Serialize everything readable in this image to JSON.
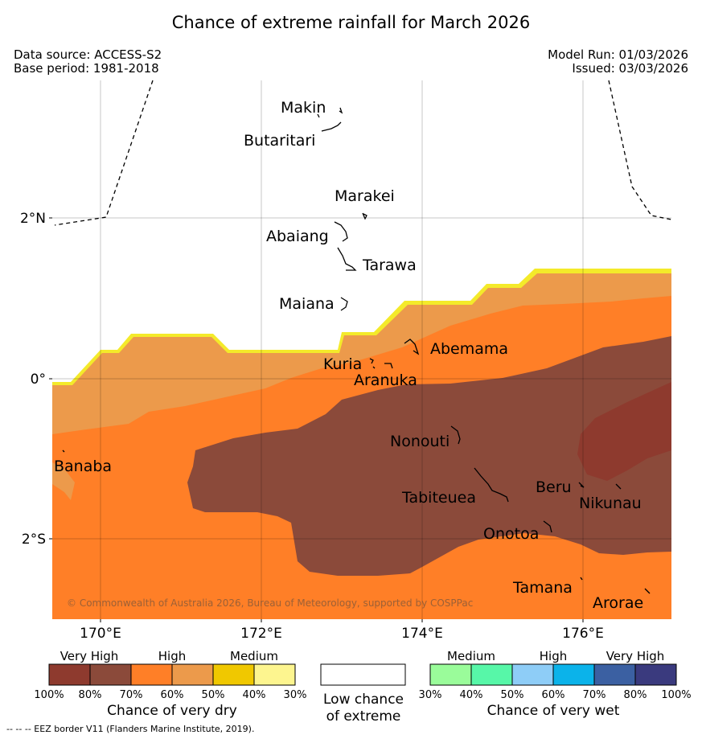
{
  "title": "Chance of extreme rainfall for March 2026",
  "meta": {
    "data_source": "Data source: ACCESS-S2",
    "base_period": "Base period: 1981-2018",
    "model_run": "Model Run: 01/03/2026",
    "issued": "Issued: 03/03/2026"
  },
  "axes": {
    "lat_labels": [
      "2°N",
      "0°",
      "2°S"
    ],
    "lon_labels": [
      "170°E",
      "172°E",
      "174°E",
      "176°E"
    ]
  },
  "places": {
    "makin": "Makin",
    "butaritari": "Butaritari",
    "marakei": "Marakei",
    "abaiang": "Abaiang",
    "tarawa": "Tarawa",
    "maiana": "Maiana",
    "abemama": "Abemama",
    "kuria": "Kuria",
    "aranuka": "Aranuka",
    "nonouti": "Nonouti",
    "banaba": "Banaba",
    "tabiteuea": "Tabiteuea",
    "beru": "Beru",
    "nikunau": "Nikunau",
    "onotoa": "Onotoa",
    "tamana": "Tamana",
    "arorae": "Arorae"
  },
  "copyright": "© Commonwealth of Australia 2026, Bureau of Meteorology, supported by COSPPac",
  "legend": {
    "dry": {
      "headers": [
        "Very High",
        "High",
        "Medium"
      ],
      "colors": [
        "#8e3a2e",
        "#8b4a3a",
        "#ff7f27",
        "#ec9a4b",
        "#f0c800",
        "#fdf58f"
      ],
      "ticks": [
        "100%",
        "80%",
        "70%",
        "60%",
        "50%",
        "40%",
        "30%"
      ],
      "title": "Chance of very dry"
    },
    "low": {
      "line1": "Low chance",
      "line2": "of extreme"
    },
    "wet": {
      "headers": [
        "Medium",
        "High",
        "Very High"
      ],
      "colors": [
        "#9afc9a",
        "#57f7a8",
        "#8ecdf7",
        "#0bb3ea",
        "#3b60a2",
        "#3a3a7e"
      ],
      "ticks": [
        "30%",
        "40%",
        "50%",
        "60%",
        "70%",
        "80%",
        "100%"
      ],
      "title": "Chance of very wet"
    }
  },
  "footnote": "--  --  -- EEZ border V11 (Flanders Marine Institute, 2019)."
}
